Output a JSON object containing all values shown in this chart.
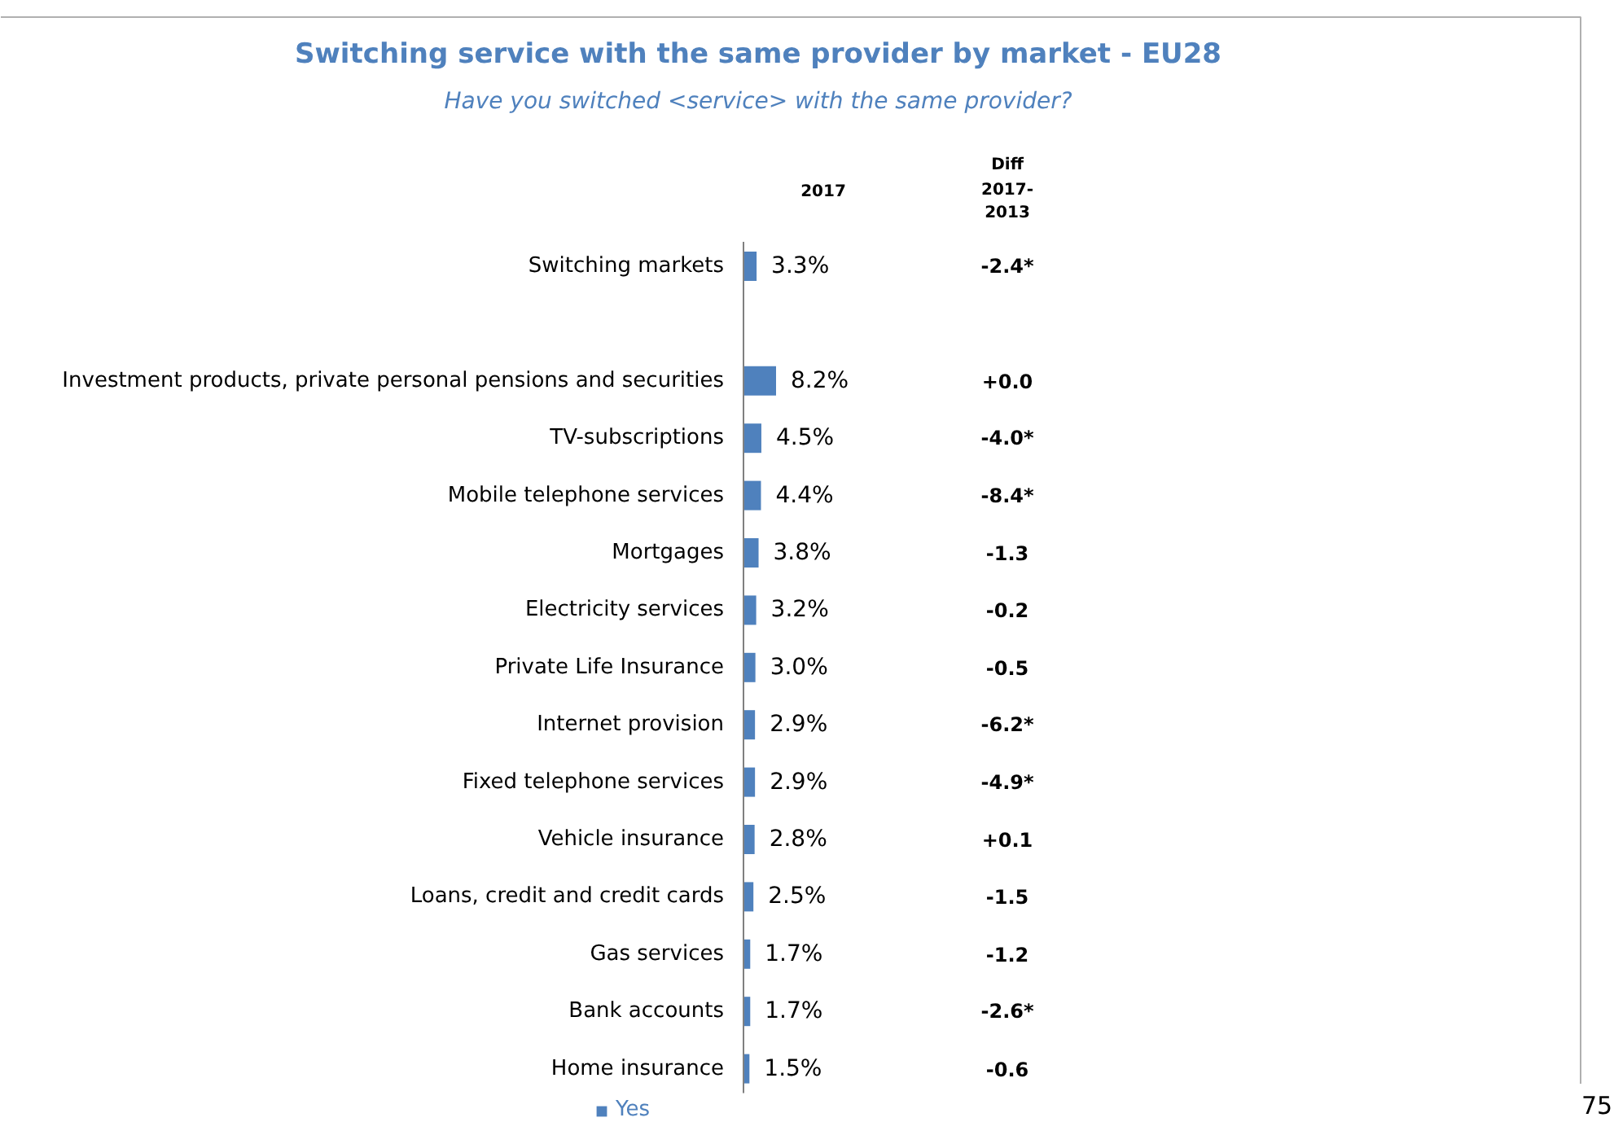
{
  "chart_data": {
    "type": "bar",
    "orientation": "horizontal",
    "title": "Switching service with the same provider by market - EU28",
    "subtitle": "Have you switched <service> with the same provider?",
    "categories": [
      "Switching markets",
      null,
      "Investment products, private personal pensions and securities",
      "TV-subscriptions",
      "Mobile telephone services",
      "Mortgages",
      "Electricity services",
      "Private Life Insurance",
      "Internet provision",
      "Fixed telephone services",
      "Vehicle insurance",
      "Loans, credit and credit cards",
      "Gas services",
      "Bank accounts",
      "Home insurance"
    ],
    "series": [
      {
        "name": "Yes",
        "color": "#4f81bd",
        "values": [
          3.3,
          null,
          8.2,
          4.5,
          4.4,
          3.8,
          3.2,
          3.0,
          2.9,
          2.9,
          2.8,
          2.5,
          1.7,
          1.7,
          1.5
        ],
        "value_labels": [
          "3.3%",
          null,
          "8.2%",
          "4.5%",
          "4.4%",
          "3.8%",
          "3.2%",
          "3.0%",
          "2.9%",
          "2.9%",
          "2.8%",
          "2.5%",
          "1.7%",
          "1.7%",
          "1.5%"
        ]
      }
    ],
    "legend": "bottom",
    "annotations": [
      "2017",
      "Diff 2017-2013",
      "75",
      "-2.4*",
      "+0.0",
      "-4.0*",
      "-8.4*",
      "-1.3",
      "-0.2",
      "-0.5",
      "-6.2*",
      "-4.9*",
      "+0.1",
      "-1.5",
      "-1.2",
      "-2.6*",
      "-0.6"
    ]
  }
}
